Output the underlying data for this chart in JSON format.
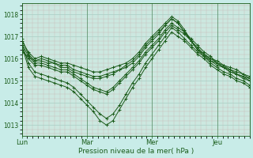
{
  "xlabel": "Pression niveau de la mer( hPa )",
  "bg_color": "#c8ece8",
  "plot_bg_color": "#cce8e0",
  "line_color": "#1a5c1a",
  "grid_color_minor": "#b8ddd4",
  "grid_color_major": "#a8cec4",
  "ylim": [
    1012.5,
    1018.5
  ],
  "yticks": [
    1013,
    1014,
    1015,
    1016,
    1017,
    1018
  ],
  "xtick_labels": [
    "Lun",
    "Mar",
    "Mer",
    "Jeu"
  ],
  "xtick_positions": [
    0,
    24,
    48,
    72
  ],
  "xlim": [
    0,
    84
  ],
  "series": [
    [
      1016.8,
      1016.3,
      1016.0,
      1016.1,
      1016.0,
      1015.9,
      1015.8,
      1015.8,
      1015.7,
      1015.6,
      1015.5,
      1015.4,
      1015.4,
      1015.5,
      1015.6,
      1015.7,
      1015.8,
      1016.0,
      1016.3,
      1016.7,
      1017.0,
      1017.3,
      1017.6,
      1017.9,
      1017.7,
      1017.3,
      1016.8,
      1016.4,
      1016.2,
      1016.0,
      1015.9,
      1015.7,
      1015.6,
      1015.5,
      1015.3,
      1015.2
    ],
    [
      1016.7,
      1016.1,
      1015.9,
      1016.0,
      1015.9,
      1015.8,
      1015.7,
      1015.7,
      1015.5,
      1015.4,
      1015.3,
      1015.2,
      1015.2,
      1015.3,
      1015.4,
      1015.5,
      1015.7,
      1015.9,
      1016.2,
      1016.6,
      1016.9,
      1017.2,
      1017.5,
      1017.8,
      1017.6,
      1017.2,
      1016.8,
      1016.4,
      1016.2,
      1015.9,
      1015.8,
      1015.6,
      1015.5,
      1015.4,
      1015.3,
      1015.1
    ],
    [
      1016.9,
      1016.2,
      1015.9,
      1015.9,
      1015.8,
      1015.8,
      1015.6,
      1015.6,
      1015.4,
      1015.3,
      1015.2,
      1015.1,
      1015.1,
      1015.2,
      1015.3,
      1015.5,
      1015.6,
      1015.8,
      1016.1,
      1016.5,
      1016.8,
      1017.1,
      1017.5,
      1017.8,
      1017.6,
      1017.2,
      1016.8,
      1016.4,
      1016.1,
      1015.9,
      1015.7,
      1015.6,
      1015.4,
      1015.3,
      1015.2,
      1015.0
    ],
    [
      1016.7,
      1015.8,
      1015.4,
      1015.3,
      1015.2,
      1015.1,
      1015.0,
      1014.9,
      1014.7,
      1014.4,
      1014.1,
      1013.8,
      1013.5,
      1013.3,
      1013.5,
      1013.9,
      1014.4,
      1014.9,
      1015.3,
      1015.8,
      1016.2,
      1016.6,
      1017.0,
      1017.4,
      1017.2,
      1016.9,
      1016.6,
      1016.3,
      1016.1,
      1015.8,
      1015.6,
      1015.4,
      1015.3,
      1015.1,
      1015.0,
      1014.8
    ],
    [
      1016.6,
      1015.6,
      1015.2,
      1015.1,
      1015.0,
      1014.9,
      1014.8,
      1014.7,
      1014.5,
      1014.2,
      1013.9,
      1013.6,
      1013.2,
      1013.0,
      1013.2,
      1013.7,
      1014.2,
      1014.7,
      1015.1,
      1015.6,
      1016.0,
      1016.4,
      1016.8,
      1017.2,
      1017.0,
      1016.8,
      1016.5,
      1016.2,
      1016.0,
      1015.7,
      1015.5,
      1015.3,
      1015.2,
      1015.0,
      1014.9,
      1014.7
    ],
    [
      1016.4,
      1016.0,
      1015.7,
      1015.7,
      1015.6,
      1015.5,
      1015.4,
      1015.4,
      1015.2,
      1015.0,
      1014.8,
      1014.6,
      1014.5,
      1014.4,
      1014.6,
      1014.9,
      1015.2,
      1015.5,
      1015.8,
      1016.2,
      1016.5,
      1016.8,
      1017.2,
      1017.5,
      1017.3,
      1017.1,
      1016.8,
      1016.5,
      1016.2,
      1016.0,
      1015.8,
      1015.6,
      1015.4,
      1015.3,
      1015.1,
      1015.0
    ],
    [
      1016.3,
      1016.1,
      1015.8,
      1015.8,
      1015.7,
      1015.6,
      1015.5,
      1015.5,
      1015.3,
      1015.1,
      1014.9,
      1014.7,
      1014.6,
      1014.5,
      1014.7,
      1015.0,
      1015.3,
      1015.6,
      1015.9,
      1016.3,
      1016.6,
      1016.9,
      1017.3,
      1017.6,
      1017.4,
      1017.2,
      1016.9,
      1016.6,
      1016.3,
      1016.1,
      1015.8,
      1015.7,
      1015.5,
      1015.3,
      1015.2,
      1015.1
    ]
  ]
}
